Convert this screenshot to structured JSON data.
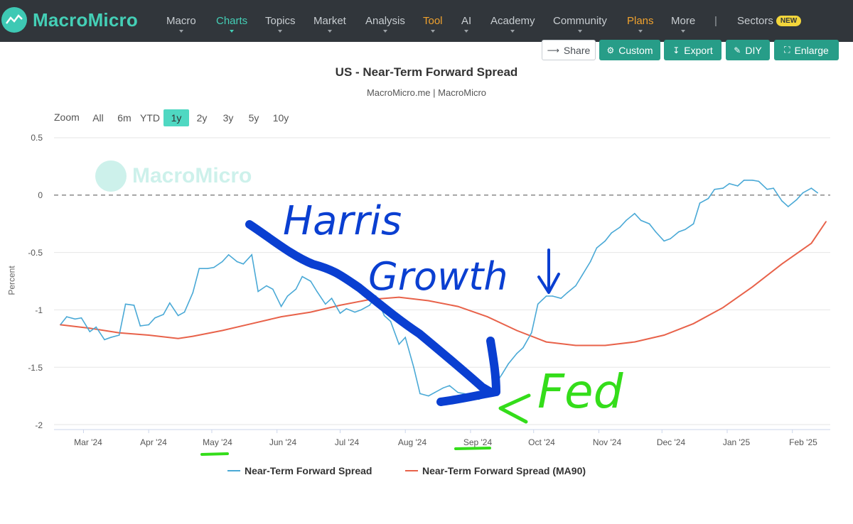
{
  "brand": {
    "name": "MacroMicro"
  },
  "nav": {
    "items": [
      "Macro",
      "Charts",
      "Topics",
      "Market",
      "Analysis",
      "Tool",
      "AI",
      "Academy",
      "Community",
      "Plans",
      "More"
    ],
    "separator": "|",
    "sectors": "Sectors",
    "new_badge": "NEW",
    "active_color": "#44cfb6",
    "highlight_color": "#f0a22e"
  },
  "toolbar": {
    "share": "Share",
    "custom": "Custom",
    "export": "Export",
    "diy": "DIY",
    "enlarge": "Enlarge",
    "button_color": "#279d88"
  },
  "zoom": {
    "label": "Zoom",
    "options": [
      "All",
      "6m",
      "YTD",
      "1y",
      "2y",
      "3y",
      "5y",
      "10y"
    ],
    "selected": "1y"
  },
  "watermark": "MacroMicro",
  "annotations": {
    "harris": "Harris",
    "growth": "Growth",
    "fed": "Fed",
    "arrow_color": "#0a3fd1",
    "highlight_color": "#34dd1a"
  },
  "chart_data": {
    "type": "line",
    "title": "US - Near-Term Forward Spread",
    "subtitle": "MacroMicro.me | MacroMicro",
    "ylabel": "Percent",
    "ylim": [
      -2,
      0.5
    ],
    "yticks": [
      "0.5",
      "0",
      "-0.5",
      "-1",
      "-1.5",
      "-2"
    ],
    "xticks": [
      "Mar '24",
      "Apr '24",
      "May '24",
      "Jun '24",
      "Jul '24",
      "Aug '24",
      "Sep '24",
      "Oct '24",
      "Nov '24",
      "Dec '24",
      "Jan '25",
      "Feb '25"
    ],
    "grid": true,
    "reference_line": 0,
    "legend_position": "bottom",
    "series": [
      {
        "name": "Near-Term Forward Spread",
        "color": "#4aa9d6",
        "values": [
          [
            "2024-02-19",
            -1.13
          ],
          [
            "2024-02-22",
            -1.06
          ],
          [
            "2024-02-26",
            -1.08
          ],
          [
            "2024-02-29",
            -1.07
          ],
          [
            "2024-03-04",
            -1.19
          ],
          [
            "2024-03-07",
            -1.15
          ],
          [
            "2024-03-11",
            -1.26
          ],
          [
            "2024-03-14",
            -1.24
          ],
          [
            "2024-03-18",
            -1.22
          ],
          [
            "2024-03-21",
            -0.95
          ],
          [
            "2024-03-25",
            -0.96
          ],
          [
            "2024-03-28",
            -1.14
          ],
          [
            "2024-04-01",
            -1.13
          ],
          [
            "2024-04-04",
            -1.07
          ],
          [
            "2024-04-08",
            -1.04
          ],
          [
            "2024-04-11",
            -0.94
          ],
          [
            "2024-04-15",
            -1.05
          ],
          [
            "2024-04-18",
            -1.02
          ],
          [
            "2024-04-22",
            -0.85
          ],
          [
            "2024-04-25",
            -0.64
          ],
          [
            "2024-04-29",
            -0.64
          ],
          [
            "2024-05-02",
            -0.63
          ],
          [
            "2024-05-06",
            -0.58
          ],
          [
            "2024-05-09",
            -0.52
          ],
          [
            "2024-05-13",
            -0.58
          ],
          [
            "2024-05-16",
            -0.6
          ],
          [
            "2024-05-20",
            -0.52
          ],
          [
            "2024-05-23",
            -0.84
          ],
          [
            "2024-05-27",
            -0.79
          ],
          [
            "2024-05-30",
            -0.82
          ],
          [
            "2024-06-03",
            -0.97
          ],
          [
            "2024-06-06",
            -0.88
          ],
          [
            "2024-06-10",
            -0.82
          ],
          [
            "2024-06-13",
            -0.71
          ],
          [
            "2024-06-17",
            -0.75
          ],
          [
            "2024-06-20",
            -0.84
          ],
          [
            "2024-06-24",
            -0.95
          ],
          [
            "2024-06-27",
            -0.9
          ],
          [
            "2024-07-01",
            -1.03
          ],
          [
            "2024-07-04",
            -0.99
          ],
          [
            "2024-07-08",
            -1.02
          ],
          [
            "2024-07-11",
            -1.0
          ],
          [
            "2024-07-15",
            -0.96
          ],
          [
            "2024-07-18",
            -0.88
          ],
          [
            "2024-07-22",
            -1.05
          ],
          [
            "2024-07-25",
            -1.1
          ],
          [
            "2024-07-29",
            -1.3
          ],
          [
            "2024-08-01",
            -1.24
          ],
          [
            "2024-08-05",
            -1.5
          ],
          [
            "2024-08-08",
            -1.73
          ],
          [
            "2024-08-12",
            -1.75
          ],
          [
            "2024-08-15",
            -1.72
          ],
          [
            "2024-08-19",
            -1.68
          ],
          [
            "2024-08-22",
            -1.66
          ],
          [
            "2024-08-26",
            -1.72
          ],
          [
            "2024-08-29",
            -1.73
          ],
          [
            "2024-09-02",
            -1.76
          ],
          [
            "2024-09-05",
            -1.78
          ],
          [
            "2024-09-09",
            -1.73
          ],
          [
            "2024-09-12",
            -1.67
          ],
          [
            "2024-09-16",
            -1.56
          ],
          [
            "2024-09-19",
            -1.47
          ],
          [
            "2024-09-23",
            -1.38
          ],
          [
            "2024-09-26",
            -1.33
          ],
          [
            "2024-09-30",
            -1.2
          ],
          [
            "2024-10-03",
            -0.95
          ],
          [
            "2024-10-07",
            -0.88
          ],
          [
            "2024-10-10",
            -0.88
          ],
          [
            "2024-10-14",
            -0.9
          ],
          [
            "2024-10-17",
            -0.85
          ],
          [
            "2024-10-21",
            -0.79
          ],
          [
            "2024-10-24",
            -0.7
          ],
          [
            "2024-10-28",
            -0.58
          ],
          [
            "2024-10-31",
            -0.46
          ],
          [
            "2024-11-04",
            -0.4
          ],
          [
            "2024-11-07",
            -0.33
          ],
          [
            "2024-11-11",
            -0.28
          ],
          [
            "2024-11-14",
            -0.22
          ],
          [
            "2024-11-18",
            -0.16
          ],
          [
            "2024-11-21",
            -0.22
          ],
          [
            "2024-11-25",
            -0.25
          ],
          [
            "2024-11-28",
            -0.32
          ],
          [
            "2024-12-02",
            -0.4
          ],
          [
            "2024-12-05",
            -0.38
          ],
          [
            "2024-12-09",
            -0.32
          ],
          [
            "2024-12-12",
            -0.3
          ],
          [
            "2024-12-16",
            -0.25
          ],
          [
            "2024-12-19",
            -0.07
          ],
          [
            "2024-12-23",
            -0.03
          ],
          [
            "2024-12-26",
            0.05
          ],
          [
            "2024-12-30",
            0.06
          ],
          [
            "2025-01-02",
            0.1
          ],
          [
            "2025-01-06",
            0.08
          ],
          [
            "2025-01-09",
            0.13
          ],
          [
            "2025-01-13",
            0.13
          ],
          [
            "2025-01-16",
            0.12
          ],
          [
            "2025-01-20",
            0.05
          ],
          [
            "2025-01-23",
            0.06
          ],
          [
            "2025-01-27",
            -0.05
          ],
          [
            "2025-01-30",
            -0.1
          ],
          [
            "2025-02-03",
            -0.04
          ],
          [
            "2025-02-06",
            0.02
          ],
          [
            "2025-02-10",
            0.06
          ],
          [
            "2025-02-13",
            0.02
          ]
        ]
      },
      {
        "name": "Near-Term Forward Spread (MA90)",
        "color": "#e8624a",
        "values": [
          [
            "2024-02-19",
            -1.13
          ],
          [
            "2024-03-04",
            -1.16
          ],
          [
            "2024-03-18",
            -1.2
          ],
          [
            "2024-04-01",
            -1.22
          ],
          [
            "2024-04-15",
            -1.25
          ],
          [
            "2024-04-22",
            -1.23
          ],
          [
            "2024-05-06",
            -1.18
          ],
          [
            "2024-05-20",
            -1.12
          ],
          [
            "2024-06-03",
            -1.06
          ],
          [
            "2024-06-17",
            -1.02
          ],
          [
            "2024-07-01",
            -0.96
          ],
          [
            "2024-07-15",
            -0.91
          ],
          [
            "2024-07-29",
            -0.89
          ],
          [
            "2024-08-12",
            -0.92
          ],
          [
            "2024-08-26",
            -0.97
          ],
          [
            "2024-09-09",
            -1.06
          ],
          [
            "2024-09-23",
            -1.18
          ],
          [
            "2024-10-07",
            -1.28
          ],
          [
            "2024-10-21",
            -1.31
          ],
          [
            "2024-11-04",
            -1.31
          ],
          [
            "2024-11-18",
            -1.28
          ],
          [
            "2024-12-02",
            -1.22
          ],
          [
            "2024-12-16",
            -1.12
          ],
          [
            "2024-12-30",
            -0.98
          ],
          [
            "2025-01-13",
            -0.8
          ],
          [
            "2025-01-27",
            -0.6
          ],
          [
            "2025-02-10",
            -0.42
          ],
          [
            "2025-02-17",
            -0.23
          ]
        ]
      }
    ]
  }
}
